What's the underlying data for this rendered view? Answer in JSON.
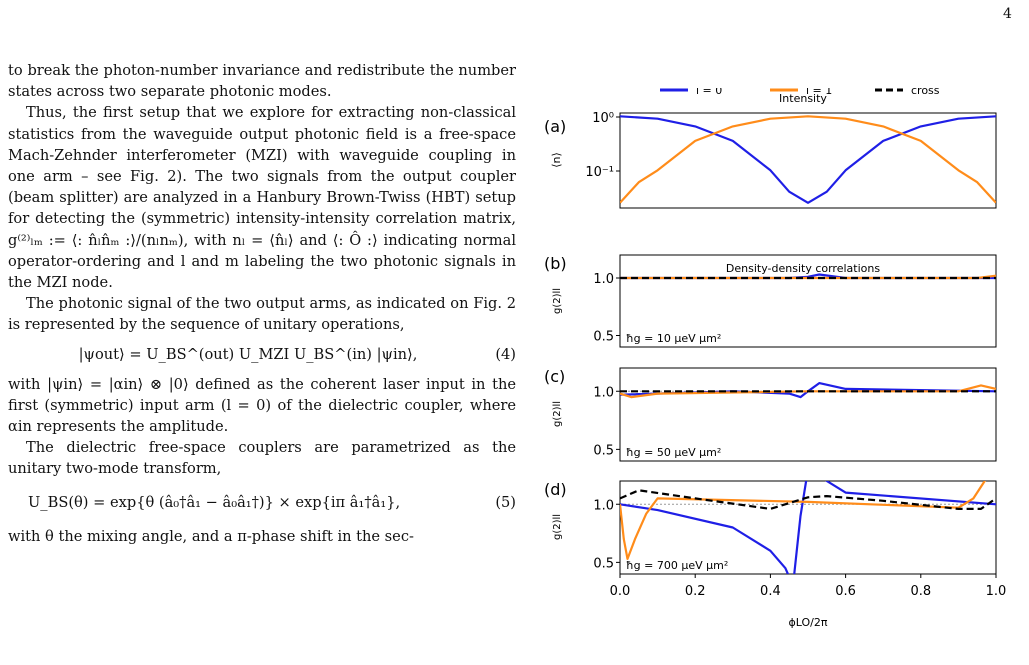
{
  "page_number": "4",
  "text": {
    "p0": "to break the photon-number invariance and redistribute the number states across two separate photonic modes.",
    "p1": "Thus, the first setup that we explore for extracting non-classical statistics from the waveguide output photonic field is a free-space Mach-Zehnder interferometer (MZI) with waveguide coupling in one arm – see Fig. 2). The two signals from the output coupler (beam splitter) are analyzed in a Hanbury Brown-Twiss (HBT) setup for detecting the (symmetric) intensity-intensity correlation matrix, g⁽²⁾ₗₘ := ⟨: n̂ₗn̂ₘ :⟩/(nₗnₘ), with nₗ = ⟨n̂ₗ⟩ and ⟨: Ô :⟩ indicating normal operator-ordering and l and m labeling the two photonic signals in the MZI node.",
    "p2": "The photonic signal of the two output arms, as indicated on Fig. 2 is represented by the sequence of unitary operations,",
    "eq4": "|ψout⟩ = U_BS^(out) U_MZI U_BS^(in) |ψin⟩,",
    "eq4_num": "(4)",
    "p3": "with |ψin⟩ = |αin⟩ ⊗ |0⟩ defined as the coherent laser input in the first (symmetric) input arm (l = 0) of the dielectric coupler, where αin represents the amplitude.",
    "p4": "The dielectric free-space couplers are parametrized as the unitary two-mode transform,",
    "eq5": "U_BS(θ) = exp{θ (â₀†â₁ − â₀â₁†)} × exp{iπ â₁†â₁},",
    "eq5_num": "(5)",
    "p5": "with θ the mixing angle, and a π-phase shift in the sec-"
  },
  "figure": {
    "legend": [
      "l = 0",
      "l = 1",
      "cross"
    ],
    "panel_titles": [
      "Intensity",
      "Density-density correlations"
    ],
    "panel_labels": [
      "(a)",
      "(b)",
      "(c)",
      "(d)"
    ],
    "ylabel_a": "⟨n⟩",
    "ylabel_g": "g(2)ll",
    "xlabel": "ϕLO/2π",
    "x_ticks": [
      "0.0",
      "0.2",
      "0.4",
      "0.6",
      "0.8",
      "1.0"
    ],
    "y_ticks_a": [
      "10⁰",
      "10⁻¹"
    ],
    "y_ticks_g": [
      "1.0",
      "0.5"
    ],
    "annotations": [
      "ħg = 10 μeV μm²",
      "ħg = 50 μeV μm²",
      "ħg = 700 μeV μm²"
    ],
    "colors": {
      "l0": "#1f1fe6",
      "l1": "#ff8c1a",
      "cross": "#000000",
      "ref": "#999999"
    }
  },
  "chart_data": [
    {
      "type": "line",
      "title": "Intensity",
      "panel": "(a)",
      "xlabel": "ϕLO/2π",
      "ylabel": "⟨n⟩",
      "yscale": "log",
      "xlim": [
        0,
        1
      ],
      "ylim": [
        0.02,
        1.15
      ],
      "series": [
        {
          "name": "l = 0",
          "x": [
            0,
            0.1,
            0.2,
            0.3,
            0.4,
            0.45,
            0.5,
            0.55,
            0.6,
            0.7,
            0.8,
            0.9,
            1.0
          ],
          "values": [
            1.0,
            0.9,
            0.65,
            0.35,
            0.1,
            0.04,
            0.025,
            0.04,
            0.1,
            0.35,
            0.65,
            0.9,
            1.0
          ]
        },
        {
          "name": "l = 1",
          "x": [
            0,
            0.05,
            0.1,
            0.2,
            0.3,
            0.4,
            0.5,
            0.6,
            0.7,
            0.8,
            0.9,
            0.95,
            1.0
          ],
          "values": [
            0.025,
            0.06,
            0.1,
            0.35,
            0.65,
            0.9,
            1.0,
            0.9,
            0.65,
            0.35,
            0.1,
            0.06,
            0.025
          ]
        }
      ]
    },
    {
      "type": "line",
      "panel": "(b)",
      "annotation": "ħg = 10 μeV μm²",
      "xlabel": "ϕLO/2π",
      "ylim": [
        0.4,
        1.2
      ],
      "series": [
        {
          "name": "l = 0",
          "x": [
            0,
            0.45,
            0.5,
            0.53,
            0.6,
            1.0
          ],
          "values": [
            1.0,
            1.0,
            1.01,
            1.03,
            1.0,
            1.0
          ]
        },
        {
          "name": "l = 1",
          "x": [
            0,
            0.5,
            0.95,
            1.0
          ],
          "values": [
            1.0,
            1.0,
            1.0,
            1.02
          ]
        },
        {
          "name": "cross",
          "x": [
            0,
            1.0
          ],
          "values": [
            1.0,
            1.0
          ]
        }
      ]
    },
    {
      "type": "line",
      "panel": "(c)",
      "annotation": "ħg = 50 μeV μm²",
      "xlabel": "ϕLO/2π",
      "ylim": [
        0.4,
        1.2
      ],
      "series": [
        {
          "name": "l = 0",
          "x": [
            0,
            0.3,
            0.45,
            0.48,
            0.5,
            0.53,
            0.6,
            1.0
          ],
          "values": [
            0.97,
            1.0,
            0.98,
            0.95,
            1.0,
            1.07,
            1.02,
            1.0
          ]
        },
        {
          "name": "l = 1",
          "x": [
            0,
            0.03,
            0.1,
            0.5,
            0.9,
            0.96,
            1.0
          ],
          "values": [
            0.98,
            0.95,
            0.98,
            1.0,
            1.0,
            1.05,
            1.02
          ]
        },
        {
          "name": "cross",
          "x": [
            0,
            1.0
          ],
          "values": [
            1.0,
            1.0
          ]
        }
      ]
    },
    {
      "type": "line",
      "panel": "(d)",
      "annotation": "ħg = 700 μeV μm²",
      "xlabel": "ϕLO/2π",
      "ylim": [
        0.4,
        1.2
      ],
      "series": [
        {
          "name": "l = 0",
          "x": [
            0,
            0.1,
            0.3,
            0.4,
            0.44,
            0.46,
            0.48,
            0.5,
            0.52,
            0.55,
            0.6,
            1.0
          ],
          "values": [
            1.0,
            0.95,
            0.8,
            0.6,
            0.45,
            0.3,
            0.9,
            1.3,
            1.3,
            1.2,
            1.1,
            1.0
          ]
        },
        {
          "name": "l = 1",
          "x": [
            0,
            0.01,
            0.02,
            0.04,
            0.07,
            0.1,
            0.5,
            0.9,
            0.94,
            0.97,
            1.0
          ],
          "values": [
            1.0,
            0.7,
            0.53,
            0.7,
            0.92,
            1.05,
            1.02,
            0.97,
            1.05,
            1.2,
            1.3
          ]
        },
        {
          "name": "cross",
          "x": [
            0,
            0.05,
            0.2,
            0.4,
            0.5,
            0.55,
            0.7,
            0.9,
            0.96,
            1.0
          ],
          "values": [
            1.05,
            1.12,
            1.05,
            0.96,
            1.06,
            1.07,
            1.03,
            0.96,
            0.96,
            1.05
          ]
        }
      ]
    }
  ]
}
